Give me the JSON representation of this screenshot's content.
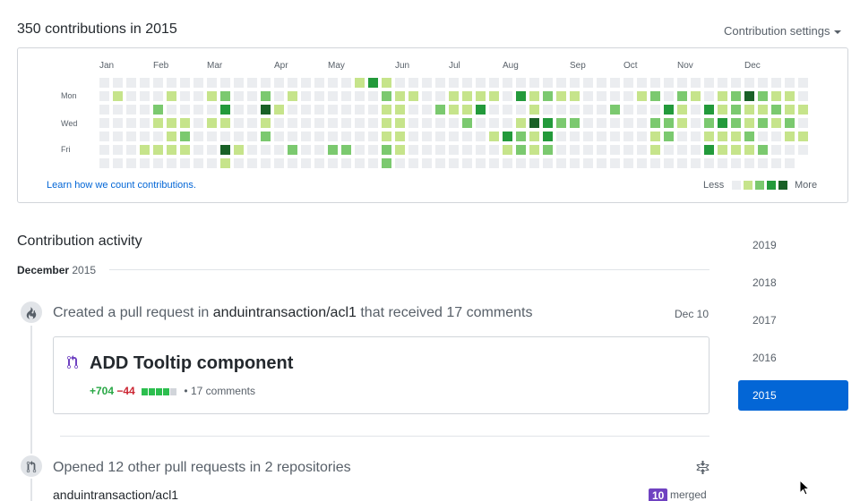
{
  "header": {
    "title": "350 contributions in 2015",
    "settings_label": "Contribution settings"
  },
  "calendar": {
    "months": [
      "Jan",
      "Feb",
      "Mar",
      "Apr",
      "May",
      "Jun",
      "Jul",
      "Aug",
      "Sep",
      "Oct",
      "Nov",
      "Dec"
    ],
    "weekday_labels": [
      "Mon",
      "Wed",
      "Fri"
    ],
    "levels_colors": [
      "#ebedf0",
      "#c6e48b",
      "#7bc96f",
      "#239a3b",
      "#196127"
    ],
    "contribution_levels": [
      [
        0,
        0,
        0,
        0,
        0,
        0,
        0,
        0,
        0,
        0,
        0,
        0,
        0,
        0,
        0,
        0,
        0,
        0,
        0,
        1,
        3,
        1,
        0,
        0,
        0,
        0,
        0,
        0,
        0,
        0,
        0,
        0,
        0,
        0,
        0,
        0,
        0,
        0,
        0,
        0,
        0,
        0,
        0,
        0,
        0,
        0,
        0,
        0,
        0,
        0,
        0,
        0,
        0
      ],
      [
        0,
        1,
        0,
        0,
        0,
        1,
        0,
        0,
        1,
        2,
        0,
        0,
        2,
        0,
        1,
        0,
        0,
        0,
        0,
        0,
        0,
        2,
        1,
        1,
        0,
        0,
        1,
        1,
        1,
        1,
        0,
        3,
        1,
        2,
        1,
        1,
        0,
        0,
        0,
        0,
        1,
        2,
        0,
        2,
        1,
        0,
        1,
        2,
        4,
        2,
        1,
        1,
        0
      ],
      [
        0,
        0,
        0,
        0,
        2,
        0,
        0,
        0,
        0,
        3,
        0,
        0,
        4,
        1,
        0,
        0,
        0,
        0,
        0,
        0,
        0,
        1,
        1,
        0,
        0,
        2,
        1,
        1,
        3,
        0,
        0,
        0,
        1,
        0,
        0,
        0,
        0,
        0,
        2,
        0,
        0,
        0,
        3,
        1,
        0,
        3,
        1,
        2,
        1,
        1,
        2,
        1,
        1
      ],
      [
        0,
        0,
        0,
        0,
        1,
        1,
        1,
        0,
        1,
        1,
        0,
        0,
        1,
        0,
        0,
        0,
        0,
        0,
        0,
        0,
        0,
        1,
        1,
        0,
        0,
        0,
        0,
        2,
        0,
        0,
        0,
        1,
        4,
        3,
        2,
        2,
        0,
        0,
        0,
        0,
        0,
        2,
        2,
        1,
        0,
        2,
        3,
        2,
        1,
        2,
        1,
        2,
        0
      ],
      [
        0,
        0,
        0,
        0,
        0,
        1,
        2,
        0,
        0,
        0,
        0,
        0,
        2,
        0,
        0,
        0,
        0,
        0,
        0,
        0,
        0,
        1,
        1,
        0,
        0,
        0,
        0,
        0,
        0,
        1,
        3,
        2,
        1,
        3,
        0,
        0,
        0,
        0,
        0,
        0,
        0,
        1,
        2,
        0,
        0,
        1,
        1,
        1,
        2,
        0,
        0,
        1,
        1
      ],
      [
        0,
        0,
        0,
        1,
        1,
        1,
        1,
        0,
        0,
        4,
        1,
        0,
        0,
        0,
        2,
        0,
        0,
        2,
        2,
        0,
        0,
        2,
        1,
        0,
        0,
        0,
        0,
        0,
        0,
        0,
        1,
        2,
        1,
        2,
        0,
        0,
        0,
        0,
        0,
        0,
        0,
        1,
        0,
        0,
        0,
        3,
        1,
        1,
        1,
        2,
        0,
        0,
        0
      ],
      [
        0,
        0,
        0,
        0,
        0,
        0,
        0,
        0,
        0,
        1,
        0,
        0,
        0,
        0,
        0,
        0,
        0,
        0,
        0,
        0,
        0,
        2,
        0,
        0,
        0,
        0,
        0,
        0,
        0,
        0,
        0,
        0,
        0,
        0,
        0,
        0,
        0,
        0,
        0,
        0,
        0,
        0,
        0,
        0,
        0,
        0,
        0,
        0,
        0,
        0,
        0,
        0,
        0
      ]
    ],
    "learn_link": "Learn how we count contributions.",
    "legend_less": "Less",
    "legend_more": "More"
  },
  "activity": {
    "title": "Contribution activity",
    "month_label": "December",
    "year_label": "2015",
    "event1": {
      "prefix": "Created a pull request in",
      "repo": "anduintransaction/acl1",
      "suffix": "that received 17 comments",
      "date": "Dec 10"
    },
    "pr": {
      "title": "ADD Tooltip component",
      "additions": "+704",
      "deletions": "−44",
      "diff_blocks": [
        "#2cbe4e",
        "#2cbe4e",
        "#2cbe4e",
        "#2cbe4e",
        "#d1d5da"
      ],
      "comments": "• 17 comments"
    },
    "event2": {
      "text": "Opened 12 other pull requests in 2 repositories",
      "repo": "anduintransaction/acl1",
      "merged_count": "10",
      "merged_label": "merged"
    }
  },
  "years": [
    "2019",
    "2018",
    "2017",
    "2016",
    "2015"
  ],
  "selected_year": "2015"
}
